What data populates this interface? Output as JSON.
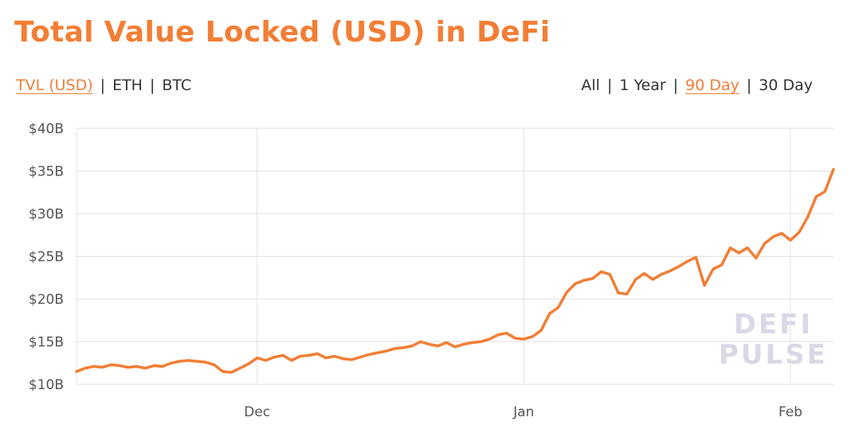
{
  "title": "Total Value Locked (USD) in DeFi",
  "metric_tabs": [
    {
      "label": "TVL (USD)",
      "active": true
    },
    {
      "label": "ETH",
      "active": false
    },
    {
      "label": "BTC",
      "active": false
    }
  ],
  "range_tabs": [
    {
      "label": "All",
      "active": false
    },
    {
      "label": "1 Year",
      "active": false
    },
    {
      "label": "90 Day",
      "active": true
    },
    {
      "label": "30 Day",
      "active": false
    }
  ],
  "watermark": {
    "line1": "DEFI",
    "line2": "PULSE"
  },
  "colors": {
    "accent": "#f27e35",
    "grid": "#e2e2e2",
    "text": "#333333"
  },
  "chart_data": {
    "type": "line",
    "title": "Total Value Locked (USD) in DeFi",
    "xlabel": "",
    "ylabel": "",
    "ylim": [
      10,
      40
    ],
    "yticks": [
      {
        "value": 10,
        "label": "$10B"
      },
      {
        "value": 15,
        "label": "$15B"
      },
      {
        "value": 20,
        "label": "$20B"
      },
      {
        "value": 25,
        "label": "$25B"
      },
      {
        "value": 30,
        "label": "$30B"
      },
      {
        "value": 35,
        "label": "$35B"
      },
      {
        "value": 40,
        "label": "$40B"
      }
    ],
    "xlim": [
      "2020-11-10",
      "2021-02-06"
    ],
    "xticks": [
      {
        "value": "2020-12-01",
        "label": "Dec"
      },
      {
        "value": "2021-01-01",
        "label": "Jan"
      },
      {
        "value": "2021-02-01",
        "label": "Feb"
      }
    ],
    "grid": true,
    "series": [
      {
        "color": "#f27e35",
        "points": [
          [
            "2020-11-10",
            11.5
          ],
          [
            "2020-11-11",
            11.9
          ],
          [
            "2020-11-12",
            12.1
          ],
          [
            "2020-11-13",
            12.0
          ],
          [
            "2020-11-14",
            12.3
          ],
          [
            "2020-11-15",
            12.2
          ],
          [
            "2020-11-16",
            12.0
          ],
          [
            "2020-11-17",
            12.1
          ],
          [
            "2020-11-18",
            11.9
          ],
          [
            "2020-11-19",
            12.2
          ],
          [
            "2020-11-20",
            12.1
          ],
          [
            "2020-11-21",
            12.5
          ],
          [
            "2020-11-22",
            12.7
          ],
          [
            "2020-11-23",
            12.8
          ],
          [
            "2020-11-24",
            12.7
          ],
          [
            "2020-11-25",
            12.6
          ],
          [
            "2020-11-26",
            12.3
          ],
          [
            "2020-11-27",
            11.5
          ],
          [
            "2020-11-28",
            11.4
          ],
          [
            "2020-11-29",
            11.9
          ],
          [
            "2020-11-30",
            12.4
          ],
          [
            "2020-12-01",
            13.1
          ],
          [
            "2020-12-02",
            12.8
          ],
          [
            "2020-12-03",
            13.2
          ],
          [
            "2020-12-04",
            13.4
          ],
          [
            "2020-12-05",
            12.8
          ],
          [
            "2020-12-06",
            13.3
          ],
          [
            "2020-12-07",
            13.4
          ],
          [
            "2020-12-08",
            13.6
          ],
          [
            "2020-12-09",
            13.1
          ],
          [
            "2020-12-10",
            13.3
          ],
          [
            "2020-12-11",
            13.0
          ],
          [
            "2020-12-12",
            12.9
          ],
          [
            "2020-12-13",
            13.2
          ],
          [
            "2020-12-14",
            13.5
          ],
          [
            "2020-12-15",
            13.7
          ],
          [
            "2020-12-16",
            13.9
          ],
          [
            "2020-12-17",
            14.2
          ],
          [
            "2020-12-18",
            14.3
          ],
          [
            "2020-12-19",
            14.5
          ],
          [
            "2020-12-20",
            15.0
          ],
          [
            "2020-12-21",
            14.7
          ],
          [
            "2020-12-22",
            14.5
          ],
          [
            "2020-12-23",
            14.9
          ],
          [
            "2020-12-24",
            14.4
          ],
          [
            "2020-12-25",
            14.7
          ],
          [
            "2020-12-26",
            14.9
          ],
          [
            "2020-12-27",
            15.0
          ],
          [
            "2020-12-28",
            15.3
          ],
          [
            "2020-12-29",
            15.8
          ],
          [
            "2020-12-30",
            16.0
          ],
          [
            "2020-12-31",
            15.4
          ],
          [
            "2021-01-01",
            15.3
          ],
          [
            "2021-01-02",
            15.6
          ],
          [
            "2021-01-03",
            16.3
          ],
          [
            "2021-01-04",
            18.3
          ],
          [
            "2021-01-05",
            19.0
          ],
          [
            "2021-01-06",
            20.8
          ],
          [
            "2021-01-07",
            21.8
          ],
          [
            "2021-01-08",
            22.2
          ],
          [
            "2021-01-09",
            22.4
          ],
          [
            "2021-01-10",
            23.2
          ],
          [
            "2021-01-11",
            22.9
          ],
          [
            "2021-01-12",
            20.7
          ],
          [
            "2021-01-13",
            20.6
          ],
          [
            "2021-01-14",
            22.3
          ],
          [
            "2021-01-15",
            23.0
          ],
          [
            "2021-01-16",
            22.3
          ],
          [
            "2021-01-17",
            22.9
          ],
          [
            "2021-01-18",
            23.3
          ],
          [
            "2021-01-19",
            23.8
          ],
          [
            "2021-01-20",
            24.4
          ],
          [
            "2021-01-21",
            24.9
          ],
          [
            "2021-01-22",
            21.6
          ],
          [
            "2021-01-23",
            23.5
          ],
          [
            "2021-01-24",
            24.0
          ],
          [
            "2021-01-25",
            26.0
          ],
          [
            "2021-01-26",
            25.4
          ],
          [
            "2021-01-27",
            26.0
          ],
          [
            "2021-01-28",
            24.8
          ],
          [
            "2021-01-29",
            26.5
          ],
          [
            "2021-01-30",
            27.3
          ],
          [
            "2021-01-31",
            27.7
          ],
          [
            "2021-02-01",
            26.9
          ],
          [
            "2021-02-02",
            27.8
          ],
          [
            "2021-02-03",
            29.6
          ],
          [
            "2021-02-04",
            32.0
          ],
          [
            "2021-02-05",
            32.6
          ],
          [
            "2021-02-06",
            35.2
          ]
        ]
      }
    ]
  }
}
